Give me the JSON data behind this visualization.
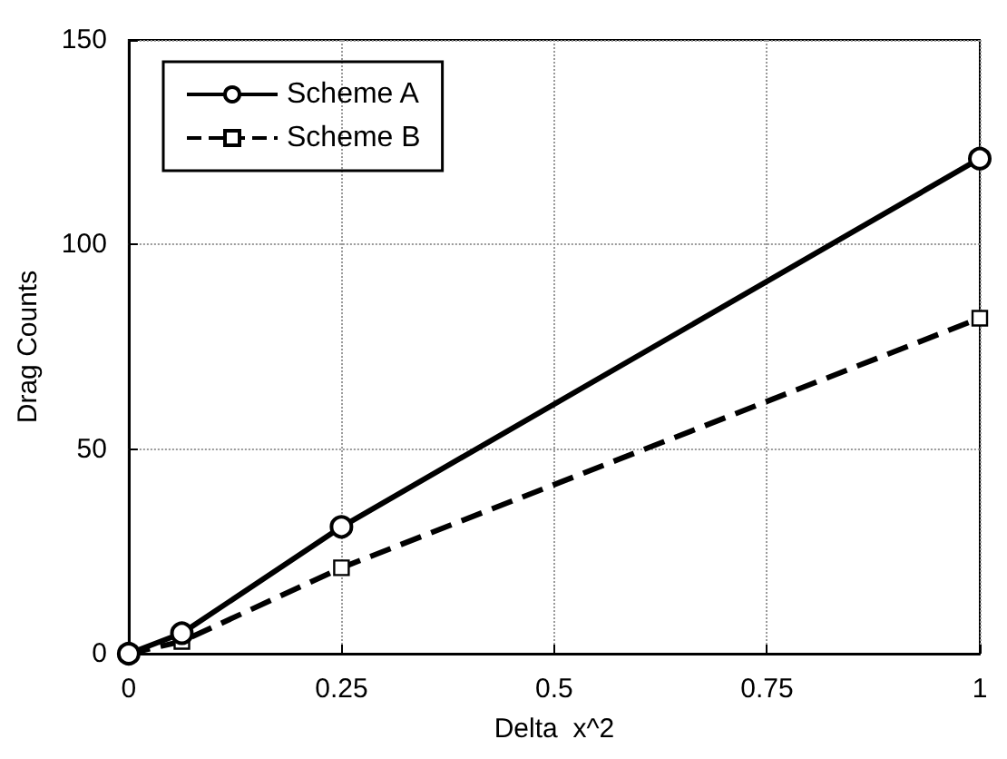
{
  "chart_data": {
    "type": "line",
    "xlabel": "Delta  x^2",
    "ylabel": "Drag Counts",
    "x": [
      0,
      0.0625,
      0.25,
      1
    ],
    "series": [
      {
        "name": "Scheme A",
        "color": "#000000",
        "values": [
          0,
          5,
          31,
          121
        ],
        "marker": "circle",
        "line_style": "solid"
      },
      {
        "name": "Scheme B",
        "color": "#000000",
        "values": [
          0,
          3,
          21,
          82
        ],
        "marker": "square",
        "line_style": "dashed"
      }
    ],
    "xlim": [
      0,
      1
    ],
    "xticks": [
      0,
      0.25,
      0.5,
      0.75,
      1
    ],
    "ylim": [
      0,
      150
    ],
    "yticks": [
      0,
      50,
      100,
      150
    ],
    "grid": true,
    "legend": "top left"
  }
}
